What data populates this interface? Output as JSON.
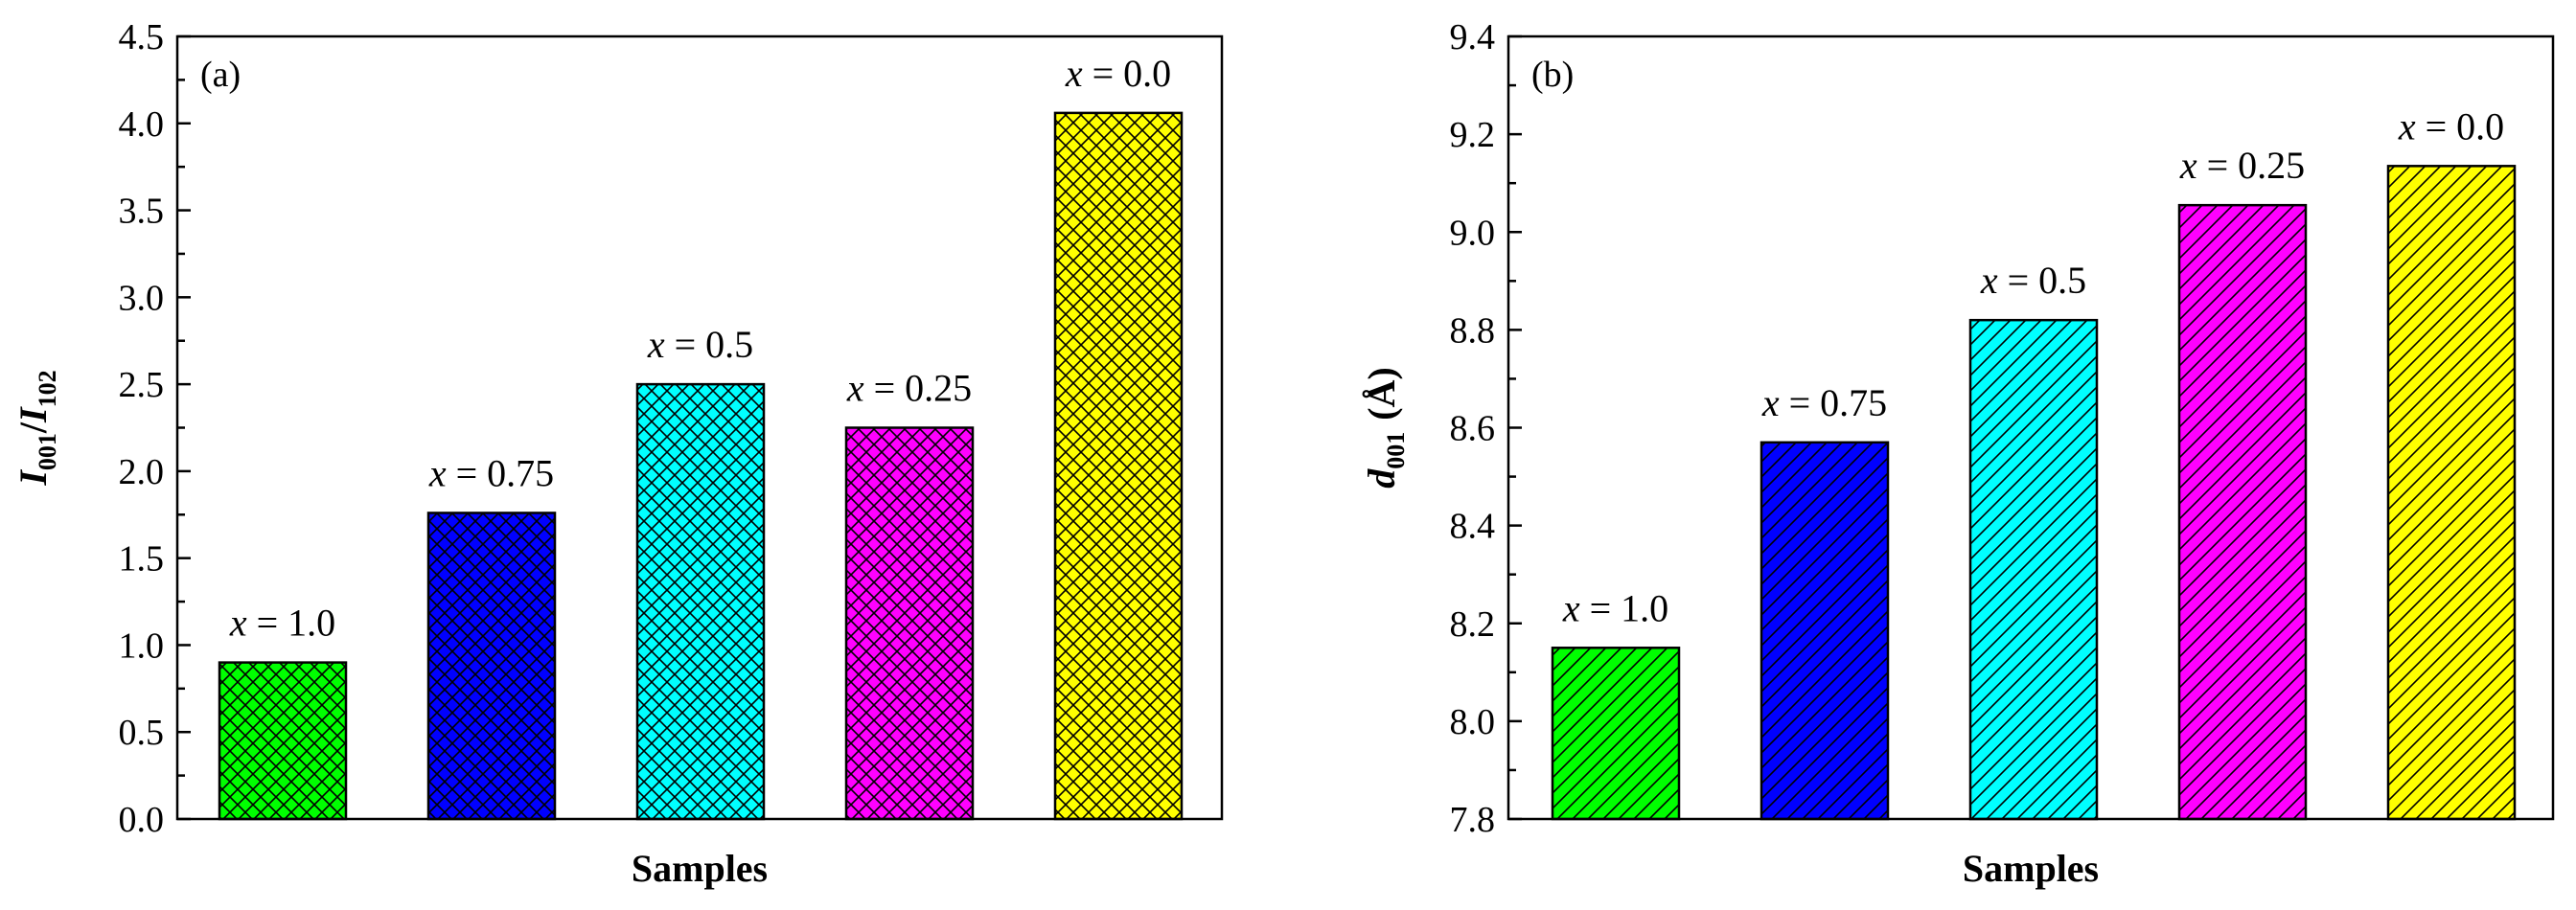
{
  "colors": {
    "green": "#00ff00",
    "blue": "#0000ff",
    "cyan": "#00ffff",
    "magenta": "#ff00ff",
    "yellow": "#ffff00",
    "outline": "#000000"
  },
  "chart_data": [
    {
      "type": "bar",
      "panel_label": "(a)",
      "title": "",
      "xlabel": "Samples",
      "ylabel": {
        "var": "I",
        "sub1": "001",
        "slash": "/",
        "var2": "I",
        "sub2": "102"
      },
      "ylim": [
        0.0,
        4.5
      ],
      "yticks": [
        "0.0",
        "0.5",
        "1.0",
        "1.5",
        "2.0",
        "2.5",
        "3.0",
        "3.5",
        "4.0",
        "4.5"
      ],
      "categories": [
        "x = 1.0",
        "x = 0.75",
        "x = 0.5",
        "x = 0.25",
        "x = 0.0"
      ],
      "bar_labels": [
        {
          "var": "x",
          "rest": " = 1.0"
        },
        {
          "var": "x",
          "rest": " = 0.75"
        },
        {
          "var": "x",
          "rest": " = 0.5"
        },
        {
          "var": "x",
          "rest": " = 0.25"
        },
        {
          "var": "x",
          "rest": " = 0.0"
        }
      ],
      "values": [
        0.9,
        1.76,
        2.5,
        2.25,
        4.06
      ],
      "bar_colors": [
        "green",
        "blue",
        "cyan",
        "magenta",
        "yellow"
      ],
      "hatch": "crosshatch"
    },
    {
      "type": "bar",
      "panel_label": "(b)",
      "title": "",
      "xlabel": "Samples",
      "ylabel": {
        "var": "d",
        "sub1": "001",
        "unit": "(Å)"
      },
      "ylim": [
        7.8,
        9.4
      ],
      "yticks": [
        "7.8",
        "8.0",
        "8.2",
        "8.4",
        "8.6",
        "8.8",
        "9.0",
        "9.2",
        "9.4"
      ],
      "categories": [
        "x = 1.0",
        "x = 0.75",
        "x = 0.5",
        "x = 0.25",
        "x = 0.0"
      ],
      "bar_labels": [
        {
          "var": "x",
          "rest": " = 1.0"
        },
        {
          "var": "x",
          "rest": " = 0.75"
        },
        {
          "var": "x",
          "rest": " = 0.5"
        },
        {
          "var": "x",
          "rest": " = 0.25"
        },
        {
          "var": "x",
          "rest": " = 0.0"
        }
      ],
      "values": [
        8.15,
        8.57,
        8.82,
        9.055,
        9.135
      ],
      "bar_colors": [
        "green",
        "blue",
        "cyan",
        "magenta",
        "yellow"
      ],
      "hatch": "diagonal"
    }
  ]
}
